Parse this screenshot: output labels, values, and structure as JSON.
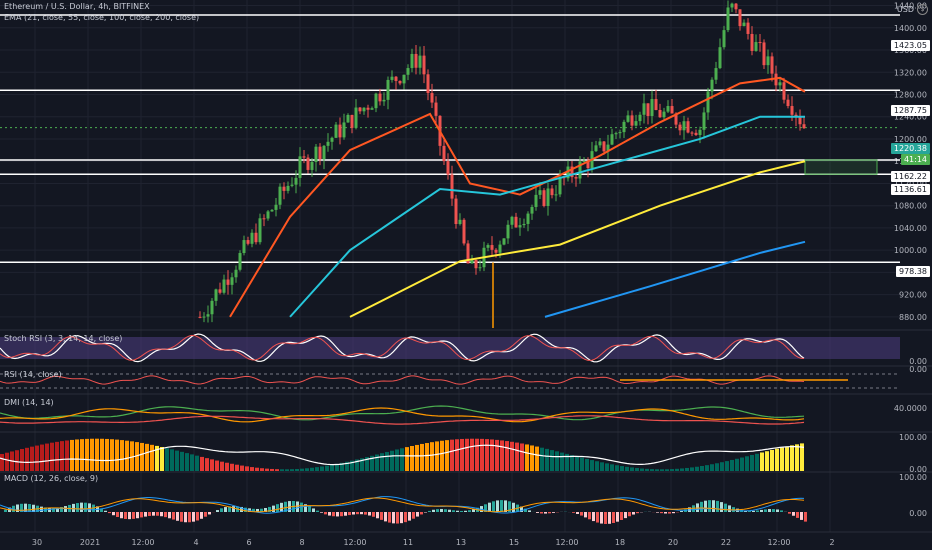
{
  "header": {
    "symbol_line": "Ethereum / U.S. Dollar, 4h, BITFINEX",
    "ema_line": "EMA (21, close, 55, close, 100, close, 200, close)",
    "currency": "USD"
  },
  "panes": {
    "stoch_rsi": "Stoch RSI (3, 3, 14, 14, close)",
    "rsi": "RSI (14, close)",
    "dmi": "DMI (14, 14)",
    "fourth": "",
    "macd": "MACD (12, 26, close, 9)"
  },
  "colors": {
    "background": "#131722",
    "grid": "#1f2330",
    "up": "#4caf50",
    "down": "#ef5350",
    "ema21": "#ff5722",
    "ema55": "#26c6da",
    "ema100": "#ffeb3b",
    "ema200": "#2196f3",
    "stoch_band": "#4a3a7a"
  },
  "price_axis": {
    "ticks": [
      "1440.00",
      "1400.00",
      "1360.00",
      "1320.00",
      "1280.00",
      "1240.00",
      "1200.00",
      "1160.00",
      "1120.00",
      "1080.00",
      "1040.00",
      "1000.00",
      "960.00",
      "920.00",
      "880.00"
    ],
    "tags": {
      "level_1": "1423.05",
      "level_2": "1287.75",
      "current": "1220.38",
      "countdown": "41:14",
      "level_3": "1162.22",
      "level_4": "1136.61",
      "level_5": "978.38"
    }
  },
  "indicator_axes": {
    "stoch_ticks": [
      "0.00"
    ],
    "rsi_ticks": [
      "0.00"
    ],
    "dmi_ticks": [
      "40.0000"
    ],
    "fourth_ticks": [
      "100.00",
      "0.00"
    ],
    "macd_ticks": [
      "100.00",
      "0.00"
    ]
  },
  "time_axis": [
    "30",
    "2021",
    "12:00",
    "4",
    "6",
    "8",
    "12:00",
    "11",
    "13",
    "15",
    "12:00",
    "18",
    "20",
    "22",
    "12:00",
    "2"
  ],
  "chart_data": {
    "type": "candlestick",
    "ylim": [
      860,
      1450
    ],
    "horizontal_levels": [
      1423.05,
      1287.75,
      1162.22,
      1136.61,
      978.38
    ],
    "support_box": [
      1136.61,
      1162.22
    ],
    "key_points": [
      {
        "label": "start",
        "price": 880
      },
      {
        "label": "peak_1",
        "price": 1350
      },
      {
        "label": "low",
        "price": 960
      },
      {
        "label": "peak_2",
        "price": 1440
      },
      {
        "label": "last",
        "price": 1220.38
      }
    ]
  }
}
